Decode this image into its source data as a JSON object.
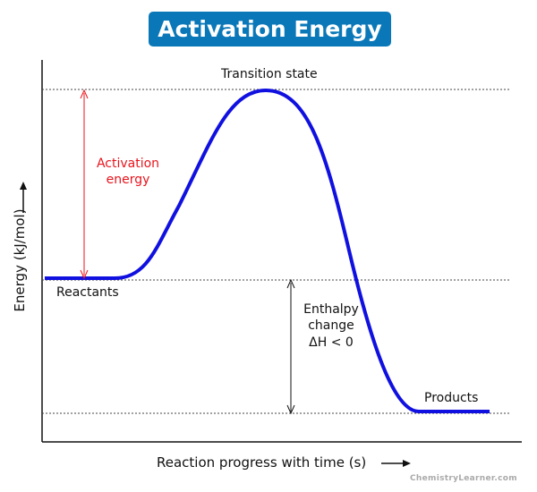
{
  "title": "Activation Energy",
  "labels": {
    "transition_state": "Transition state",
    "activation_energy_line1": "Activation",
    "activation_energy_line2": "energy",
    "reactants": "Reactants",
    "products": "Products",
    "enthalpy_line1": "Enthalpy",
    "enthalpy_line2": "change",
    "enthalpy_line3": "ΔH < 0"
  },
  "axes": {
    "x_label": "Reaction progress with time (s)",
    "y_label": "Energy (kJ/mol)"
  },
  "watermark": "ChemistryLearner.com",
  "colors": {
    "title_bg": "#0a78b8",
    "curve": "#1010e0",
    "activation_arrow": "#e8141c"
  }
}
